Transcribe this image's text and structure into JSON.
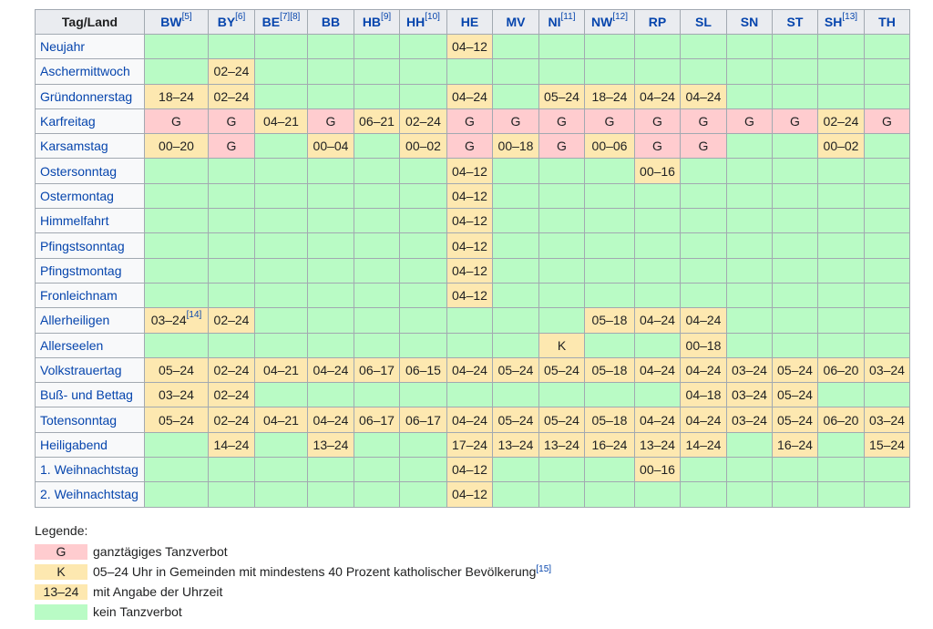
{
  "colors": {
    "none": "#b9fbc5",
    "full": "#ffcccf",
    "time": "#fde8b0",
    "header": "#eaecf0",
    "link": "#0645ad"
  },
  "header": {
    "first": "Tag/Land",
    "states": [
      {
        "code": "BW",
        "ref": "[5]"
      },
      {
        "code": "BY",
        "ref": "[6]"
      },
      {
        "code": "BE",
        "ref": "[7][8]"
      },
      {
        "code": "BB",
        "ref": ""
      },
      {
        "code": "HB",
        "ref": "[9]"
      },
      {
        "code": "HH",
        "ref": "[10]"
      },
      {
        "code": "HE",
        "ref": ""
      },
      {
        "code": "MV",
        "ref": ""
      },
      {
        "code": "NI",
        "ref": "[11]"
      },
      {
        "code": "NW",
        "ref": "[12]"
      },
      {
        "code": "RP",
        "ref": ""
      },
      {
        "code": "SL",
        "ref": ""
      },
      {
        "code": "SN",
        "ref": ""
      },
      {
        "code": "ST",
        "ref": ""
      },
      {
        "code": "SH",
        "ref": "[13]"
      },
      {
        "code": "TH",
        "ref": ""
      }
    ]
  },
  "rows": [
    {
      "day": "Neujahr",
      "cells": [
        "",
        "",
        "",
        "",
        "",
        "",
        "04–12",
        "",
        "",
        "",
        "",
        "",
        "",
        "",
        "",
        ""
      ]
    },
    {
      "day": "Aschermittwoch",
      "cells": [
        "",
        "02–24",
        "",
        "",
        "",
        "",
        "",
        "",
        "",
        "",
        "",
        "",
        "",
        "",
        "",
        ""
      ]
    },
    {
      "day": "Gründonnerstag",
      "cells": [
        "18–24",
        "02–24",
        "",
        "",
        "",
        "",
        "04–24",
        "",
        "05–24",
        "18–24",
        "04–24",
        "04–24",
        "",
        "",
        "",
        ""
      ]
    },
    {
      "day": "Karfreitag",
      "cells": [
        "G",
        "G",
        "04–21",
        "G",
        "06–21",
        "02–24",
        "G",
        "G",
        "G",
        "G",
        "G",
        "G",
        "G",
        "G",
        "02–24",
        "G"
      ]
    },
    {
      "day": "Karsamstag",
      "cells": [
        "00–20",
        "G",
        "",
        "00–04",
        "",
        "00–02",
        "G",
        "00–18",
        "G",
        "00–06",
        "G",
        "G",
        "",
        "",
        "00–02",
        ""
      ]
    },
    {
      "day": "Ostersonntag",
      "cells": [
        "",
        "",
        "",
        "",
        "",
        "",
        "04–12",
        "",
        "",
        "",
        "00–16",
        "",
        "",
        "",
        "",
        ""
      ]
    },
    {
      "day": "Ostermontag",
      "cells": [
        "",
        "",
        "",
        "",
        "",
        "",
        "04–12",
        "",
        "",
        "",
        "",
        "",
        "",
        "",
        "",
        ""
      ]
    },
    {
      "day": "Himmelfahrt",
      "cells": [
        "",
        "",
        "",
        "",
        "",
        "",
        "04–12",
        "",
        "",
        "",
        "",
        "",
        "",
        "",
        "",
        ""
      ]
    },
    {
      "day": "Pfingstsonntag",
      "cells": [
        "",
        "",
        "",
        "",
        "",
        "",
        "04–12",
        "",
        "",
        "",
        "",
        "",
        "",
        "",
        "",
        ""
      ]
    },
    {
      "day": "Pfingstmontag",
      "cells": [
        "",
        "",
        "",
        "",
        "",
        "",
        "04–12",
        "",
        "",
        "",
        "",
        "",
        "",
        "",
        "",
        ""
      ]
    },
    {
      "day": "Fronleichnam",
      "cells": [
        "",
        "",
        "",
        "",
        "",
        "",
        "04–12",
        "",
        "",
        "",
        "",
        "",
        "",
        "",
        "",
        ""
      ]
    },
    {
      "day": "Allerheiligen",
      "cells": [
        "03–24|[14]",
        "02–24",
        "",
        "",
        "",
        "",
        "",
        "",
        "",
        "05–18",
        "04–24",
        "04–24",
        "",
        "",
        "",
        ""
      ]
    },
    {
      "day": "Allerseelen",
      "cells": [
        "",
        "",
        "",
        "",
        "",
        "",
        "",
        "",
        "K",
        "",
        "",
        "00–18",
        "",
        "",
        "",
        ""
      ]
    },
    {
      "day": "Volkstrauertag",
      "cells": [
        "05–24",
        "02–24",
        "04–21",
        "04–24",
        "06–17",
        "06–15",
        "04–24",
        "05–24",
        "05–24",
        "05–18",
        "04–24",
        "04–24",
        "03–24",
        "05–24",
        "06–20",
        "03–24"
      ]
    },
    {
      "day": "Buß- und Bettag",
      "cells": [
        "03–24",
        "02–24",
        "",
        "",
        "",
        "",
        "",
        "",
        "",
        "",
        "",
        "04–18",
        "03–24",
        "05–24",
        "",
        ""
      ]
    },
    {
      "day": "Totensonntag",
      "cells": [
        "05–24",
        "02–24",
        "04–21",
        "04–24",
        "06–17",
        "06–17",
        "04–24",
        "05–24",
        "05–24",
        "05–18",
        "04–24",
        "04–24",
        "03–24",
        "05–24",
        "06–20",
        "03–24"
      ]
    },
    {
      "day": "Heiligabend",
      "cells": [
        "",
        "14–24",
        "",
        "13–24",
        "",
        "",
        "17–24",
        "13–24",
        "13–24",
        "16–24",
        "13–24",
        "14–24",
        "",
        "16–24",
        "",
        "15–24"
      ]
    },
    {
      "day": "1. Weihnachtstag",
      "cells": [
        "",
        "",
        "",
        "",
        "",
        "",
        "04–12",
        "",
        "",
        "",
        "00–16",
        "",
        "",
        "",
        "",
        ""
      ]
    },
    {
      "day": "2. Weihnachtstag",
      "cells": [
        "",
        "",
        "",
        "",
        "",
        "",
        "04–12",
        "",
        "",
        "",
        "",
        "",
        "",
        "",
        "",
        ""
      ]
    }
  ],
  "legend": {
    "title": "Legende:",
    "items": [
      {
        "swatch": "G",
        "type": "full",
        "text": "ganztägiges Tanzverbot",
        "ref": ""
      },
      {
        "swatch": "K",
        "type": "time",
        "text": "05–24 Uhr in Gemeinden mit mindestens 40 Prozent katholischer Bevölkerung",
        "ref": "[15]"
      },
      {
        "swatch": "13–24",
        "type": "time",
        "text": "mit Angabe der Uhrzeit",
        "ref": ""
      },
      {
        "swatch": "",
        "type": "none",
        "text": "kein Tanzverbot",
        "ref": ""
      }
    ]
  }
}
